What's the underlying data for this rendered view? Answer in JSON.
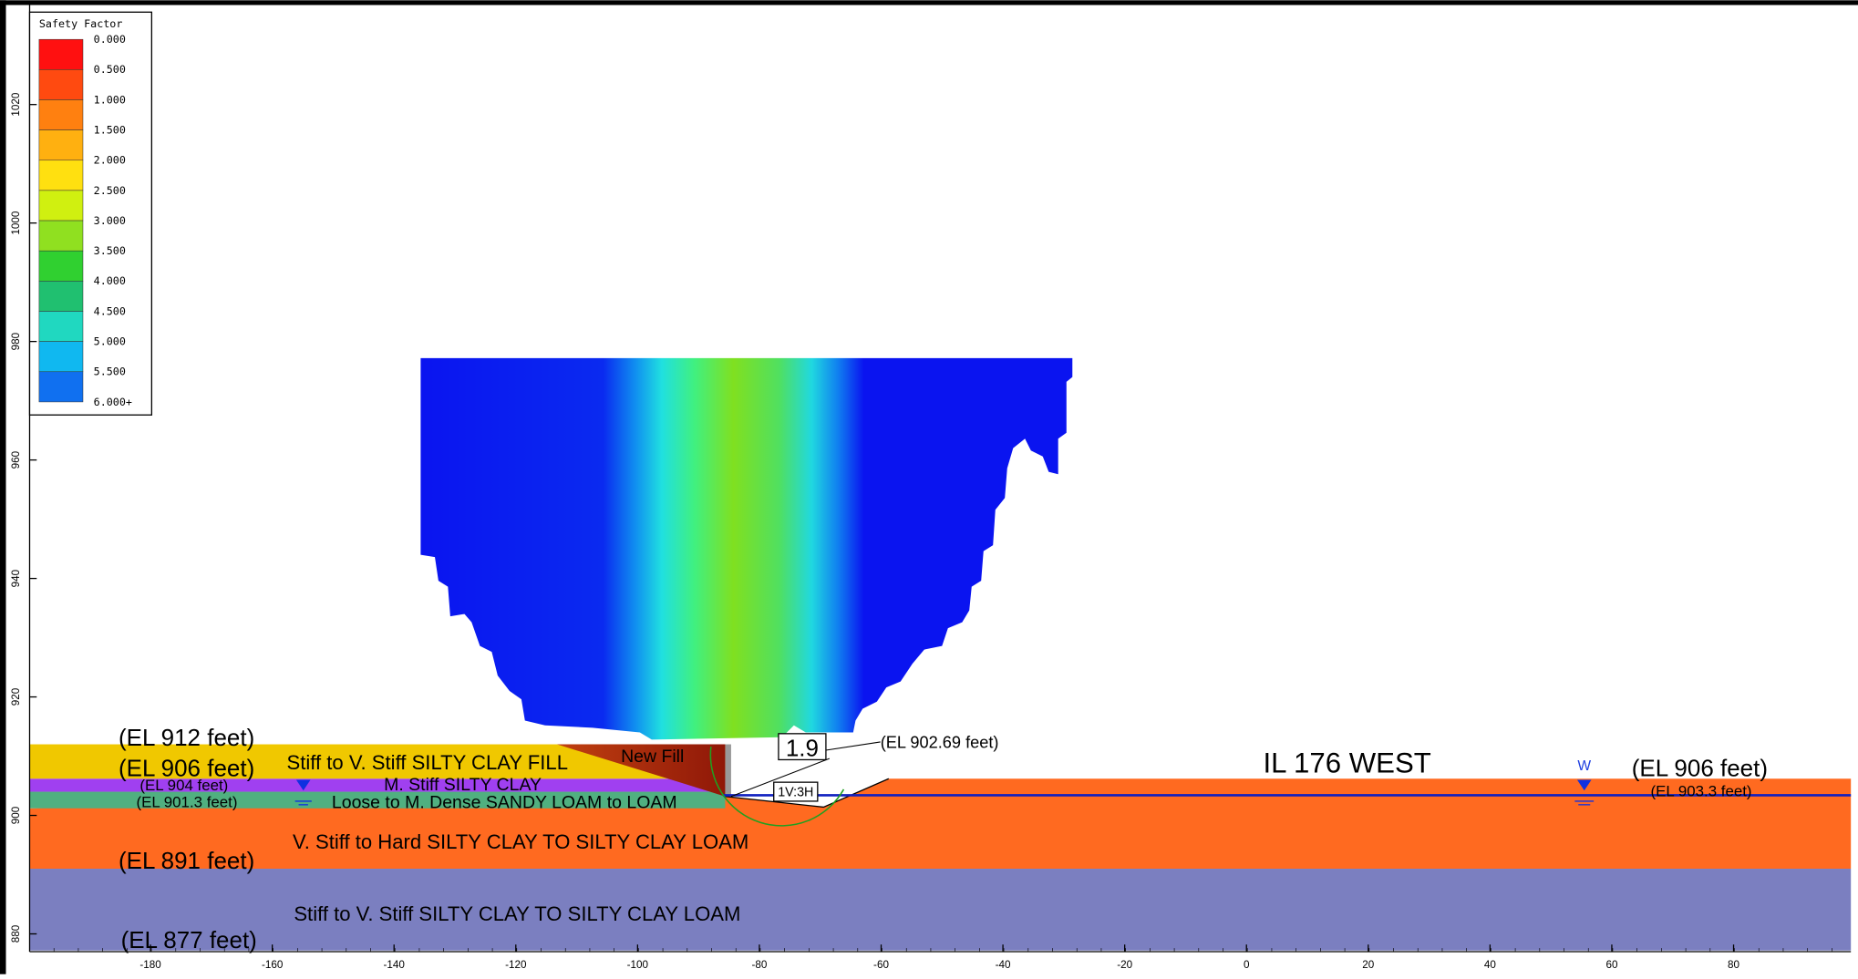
{
  "legend": {
    "title": "Safety Factor",
    "labels": [
      "0.000",
      "0.500",
      "1.000",
      "1.500",
      "2.000",
      "2.500",
      "3.000",
      "3.500",
      "4.000",
      "4.500",
      "5.000",
      "5.500",
      "6.000+"
    ],
    "colors": [
      "#ff1010",
      "#ff4a10",
      "#ff8010",
      "#ffb010",
      "#ffe010",
      "#d0f010",
      "#90e020",
      "#30d030",
      "#20c070",
      "#20d8c0",
      "#10b8f0",
      "#1070f0"
    ]
  },
  "x_axis": {
    "ticks": [
      -180,
      -160,
      -140,
      -120,
      -100,
      -80,
      -60,
      -40,
      -20,
      0,
      20,
      40,
      60,
      80
    ]
  },
  "y_axis": {
    "ticks": [
      1020,
      1000,
      980,
      960,
      940,
      920,
      900,
      880
    ]
  },
  "factor_of_safety": "1.9",
  "slope": "1V:3H",
  "road": "IL 176 WEST",
  "water_marker": "W",
  "elevations": [
    "(EL 912 feet)",
    "(EL 906 feet)",
    "(EL 904 feet)",
    "(EL 901.3 feet)",
    "(EL 891 feet)",
    "(EL 877 feet)",
    "(EL 902.69 feet)",
    "(EL 906 feet)",
    "(EL 903.3 feet)"
  ],
  "layers": [
    "Stiff to V. Stiff SILTY CLAY FILL",
    "M. Stiff SILTY CLAY",
    "Loose to M. Dense SANDY LOAM to LOAM",
    "V. Stiff to Hard SILTY CLAY TO SILTY CLAY LOAM",
    "Stiff to V. Stiff SILTY CLAY TO SILTY CLAY LOAM",
    "New Fill"
  ]
}
